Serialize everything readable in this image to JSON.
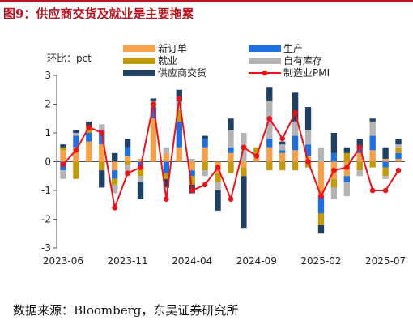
{
  "header": {
    "title": "图9：供应商交货及就业是主要拖累"
  },
  "footer": {
    "source": "数据来源：Bloomberg，东吴证券研究所"
  },
  "chart_data": {
    "type": "bar",
    "stacked": true,
    "unit_label": "环比：pct",
    "ylim": [
      -3,
      3
    ],
    "yticks": [
      -3,
      -2,
      -1,
      0,
      1,
      2,
      3
    ],
    "x_tick_labels": [
      "2023-06",
      "2023-11",
      "2024-04",
      "2024-09",
      "2025-02",
      "2025-07"
    ],
    "x_tick_index": [
      0,
      5,
      10,
      15,
      20,
      25
    ],
    "categories": [
      "2023-06",
      "2023-07",
      "2023-08",
      "2023-09",
      "2023-10",
      "2023-11",
      "2023-12",
      "2024-01",
      "2024-02",
      "2024-03",
      "2024-04",
      "2024-05",
      "2024-06",
      "2024-07",
      "2024-08",
      "2024-09",
      "2024-10",
      "2024-11",
      "2024-12",
      "2025-01",
      "2025-02",
      "2025-03",
      "2025-04",
      "2025-05",
      "2025-06",
      "2025-07",
      "2025-08"
    ],
    "legend_position": "top",
    "series": [
      {
        "name": "新订单",
        "color": "#f5a04a",
        "kind": "bar",
        "values": [
          0.4,
          0.5,
          0.7,
          0.6,
          -0.3,
          0.2,
          0.1,
          1.5,
          0.3,
          0.5,
          -0.3,
          0.5,
          -0.4,
          0.3,
          -0.2,
          0.3,
          0.5,
          0.3,
          0.4,
          0.2,
          -1.2,
          -0.6,
          -0.5,
          0.3,
          0.4,
          0.1,
          0.1
        ]
      },
      {
        "name": "生产",
        "color": "#1f6fe0",
        "kind": "bar",
        "values": [
          -0.3,
          0.4,
          0.3,
          0.5,
          -0.3,
          0.3,
          -0.2,
          0.4,
          -0.4,
          0.9,
          -0.2,
          0.3,
          0.0,
          0.2,
          0.0,
          0.0,
          0.3,
          0.1,
          0.5,
          0.4,
          -0.6,
          0.3,
          -0.2,
          0.2,
          0.5,
          -0.2,
          0.2
        ]
      },
      {
        "name": "就业",
        "color": "#c39a0c",
        "kind": "bar",
        "values": [
          0.1,
          -0.6,
          0.2,
          -0.3,
          -0.2,
          -0.1,
          -0.3,
          0.1,
          -0.2,
          0.4,
          -0.3,
          -0.3,
          -0.3,
          -0.4,
          -0.3,
          0.2,
          -0.3,
          -0.3,
          -0.3,
          -0.2,
          -0.4,
          -0.3,
          0.3,
          -0.3,
          -0.2,
          -0.3,
          0.2
        ]
      },
      {
        "name": "自有库存",
        "color": "#b4b4b4",
        "kind": "bar",
        "values": [
          -0.3,
          0.1,
          0.0,
          0.2,
          -0.3,
          -0.4,
          -0.2,
          0.1,
          0.2,
          0.3,
          0.1,
          -0.2,
          -0.3,
          0.6,
          1.0,
          0.0,
          1.3,
          0.2,
          0.5,
          0.5,
          0.5,
          -0.4,
          -0.5,
          -0.2,
          0.5,
          -0.1,
          0.1
        ]
      },
      {
        "name": "供应商交货",
        "color": "#1f3f63",
        "kind": "bar",
        "values": [
          0.1,
          0.1,
          0.2,
          -0.6,
          0.3,
          0.3,
          -0.6,
          0.1,
          -0.3,
          0.4,
          -0.3,
          0.1,
          -0.7,
          0.4,
          -1.8,
          0.0,
          0.5,
          0.1,
          1.0,
          0.8,
          -0.3,
          0.7,
          0.2,
          0.3,
          0.1,
          0.4,
          0.2
        ]
      },
      {
        "name": "制造业PMI",
        "color": "#e8141c",
        "kind": "line",
        "values": [
          -0.1,
          0.4,
          1.2,
          1.0,
          -1.6,
          -0.4,
          -0.2,
          2.0,
          -1.3,
          2.2,
          -1.0,
          -0.8,
          -0.2,
          -1.3,
          0.5,
          0.2,
          1.5,
          0.8,
          1.7,
          0.0,
          -1.2,
          -0.3,
          -0.2,
          0.5,
          -1.0,
          -1.0,
          -0.3
        ]
      }
    ]
  }
}
